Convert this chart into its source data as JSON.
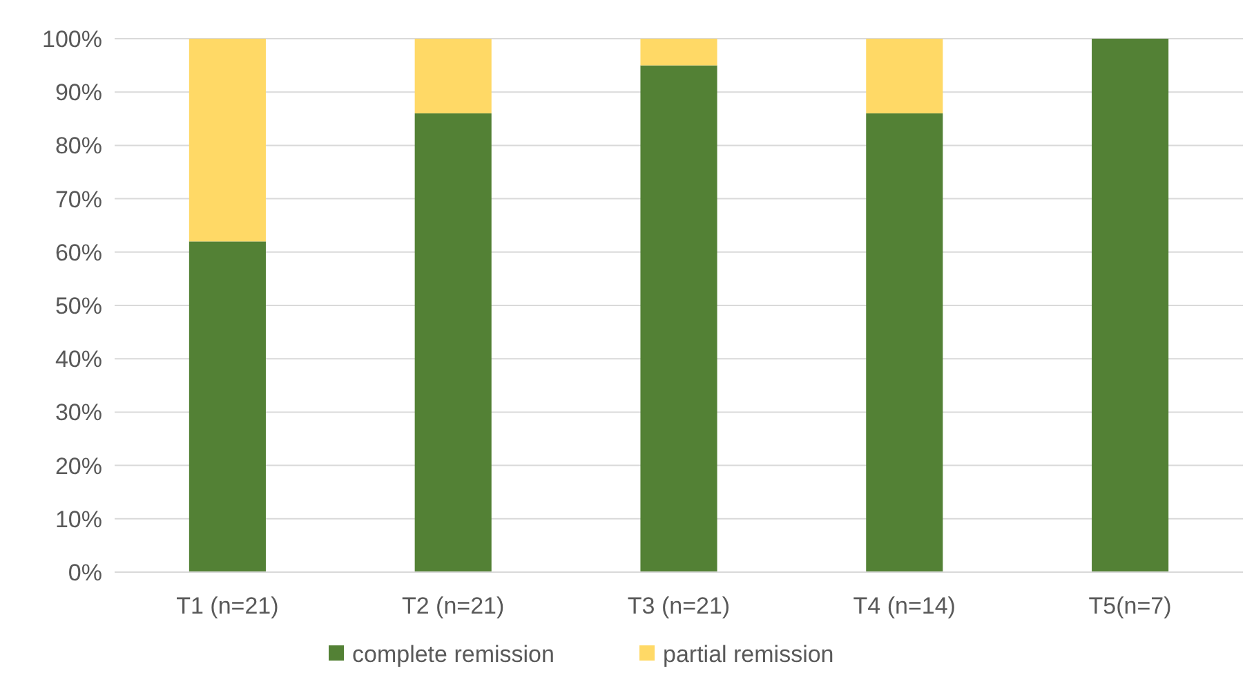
{
  "chart_data": {
    "type": "bar",
    "stacked": true,
    "categories": [
      "T1 (n=21)",
      "T2 (n=21)",
      "T3 (n=21)",
      "T4 (n=14)",
      "T5(n=7)"
    ],
    "series": [
      {
        "name": "complete remission",
        "color": "#538135",
        "values": [
          62,
          86,
          95,
          86,
          100
        ]
      },
      {
        "name": "partial remission",
        "color": "#ffd966",
        "values": [
          38,
          14,
          5,
          14,
          0
        ]
      }
    ],
    "ylim": [
      0,
      100
    ],
    "yticks": [
      {
        "value": 0,
        "label": "0%"
      },
      {
        "value": 10,
        "label": "10%"
      },
      {
        "value": 20,
        "label": "20%"
      },
      {
        "value": 30,
        "label": "30%"
      },
      {
        "value": 40,
        "label": "40%"
      },
      {
        "value": 50,
        "label": "50%"
      },
      {
        "value": 60,
        "label": "60%"
      },
      {
        "value": 70,
        "label": "70%"
      },
      {
        "value": 80,
        "label": "80%"
      },
      {
        "value": 90,
        "label": "90%"
      },
      {
        "value": 100,
        "label": "100%"
      }
    ],
    "grid": "y",
    "legend": "bottom"
  }
}
